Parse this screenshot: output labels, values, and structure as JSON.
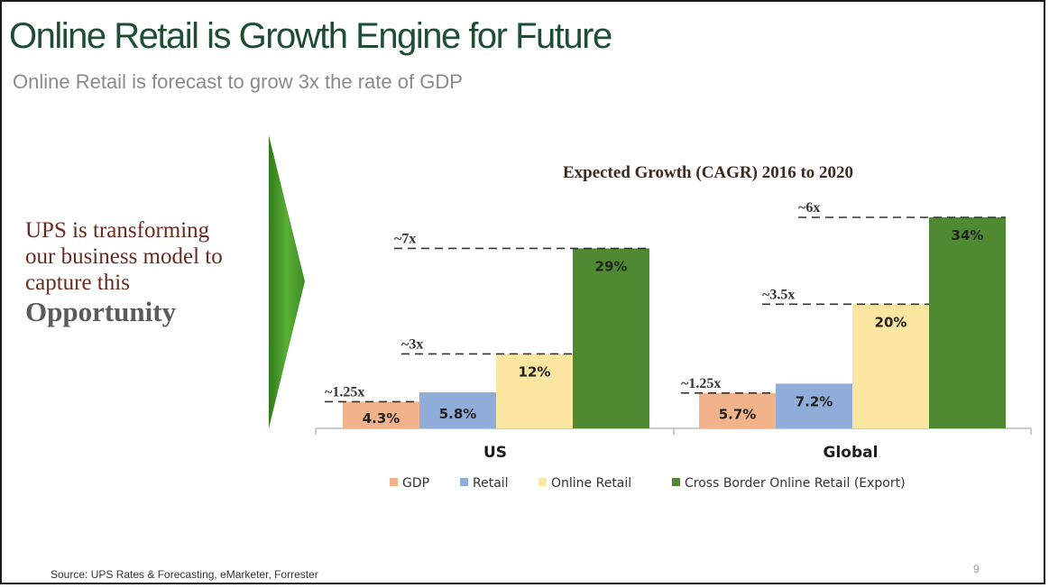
{
  "slide": {
    "title": "Online Retail is Growth Engine for Future",
    "subtitle": "Online Retail is forecast to grow 3x the rate of GDP",
    "message_lines": [
      "UPS is  transforming",
      "our business model to",
      "capture this"
    ],
    "message_emphasis": "Opportunity",
    "source": "Source: UPS Rates & Forecasting, eMarketer, Forrester",
    "page_number": "9"
  },
  "colors": {
    "title": "#1e4d33",
    "arrow": "#4f9a2b",
    "gdp": "#f2b38a",
    "retail": "#90acd8",
    "online": "#fbe6a2",
    "cross_border": "#4f8a33"
  },
  "chart_data": {
    "type": "bar",
    "title": "Expected Growth (CAGR) 2016 to 2020",
    "categories": [
      "US",
      "Global"
    ],
    "series": [
      {
        "name": "GDP",
        "values": [
          4.3,
          5.7
        ],
        "labels": [
          "4.3%",
          "5.7%"
        ],
        "multiples": [
          "~1.25x",
          "~1.25x"
        ]
      },
      {
        "name": "Retail",
        "values": [
          5.8,
          7.2
        ],
        "labels": [
          "5.8%",
          "7.2%"
        ],
        "multiples": [
          "",
          ""
        ]
      },
      {
        "name": "Online Retail",
        "values": [
          12,
          20
        ],
        "labels": [
          "12%",
          "20%"
        ],
        "multiples": [
          "~3x",
          "~3.5x"
        ]
      },
      {
        "name": "Cross Border Online Retail  (Export)",
        "values": [
          29,
          34
        ],
        "labels": [
          "29%",
          "34%"
        ],
        "multiples": [
          "~7x",
          "~6x"
        ]
      }
    ],
    "ylim": [
      0,
      34
    ],
    "xlabel": "",
    "ylabel": "",
    "legend": "bottom",
    "grid": false
  }
}
